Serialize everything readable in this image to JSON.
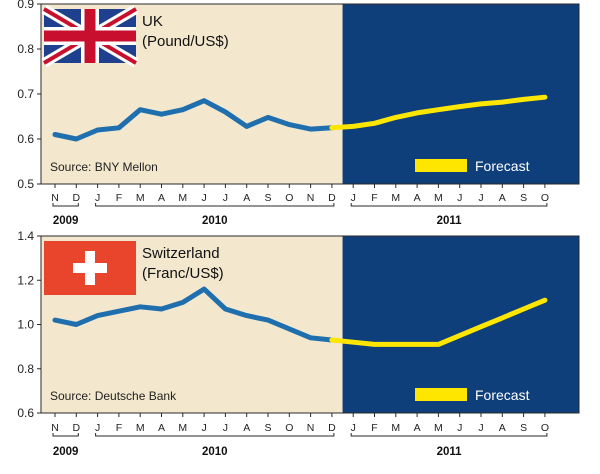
{
  "colors": {
    "history_bg": "#f3e8cd",
    "forecast_bg": "#0e3f7a",
    "history_line": "#1f6fae",
    "forecast_line": "#ffe600",
    "axis": "#2a2a2a",
    "grid": "#d6ccb4"
  },
  "months": [
    "N",
    "D",
    "J",
    "F",
    "M",
    "A",
    "M",
    "J",
    "J",
    "A",
    "S",
    "O",
    "N",
    "D",
    "J",
    "F",
    "M",
    "A",
    "M",
    "J",
    "J",
    "A",
    "S",
    "O"
  ],
  "year_labels": [
    "2009",
    "2010",
    "2011"
  ],
  "chart_data": [
    {
      "type": "line",
      "country": "UK",
      "unit": "(Pound/US$)",
      "flag": "uk-flag",
      "source": "Source: BNY Mellon",
      "legend_forecast": "Forecast",
      "ylim": [
        0.5,
        0.9
      ],
      "yticks": [
        "0.5",
        "0.6",
        "0.7",
        "0.8",
        "0.9"
      ],
      "series": [
        {
          "values": [
            0.61,
            0.6,
            0.62,
            0.625,
            0.665,
            0.655,
            0.665,
            0.685,
            0.66,
            0.628,
            0.648,
            0.632,
            0.622,
            0.625,
            null,
            null,
            null,
            null,
            null,
            null,
            null,
            null,
            null,
            null
          ]
        },
        {
          "name": "Forecast",
          "values": [
            null,
            null,
            null,
            null,
            null,
            null,
            null,
            null,
            null,
            null,
            null,
            null,
            null,
            0.625,
            0.628,
            0.635,
            0.648,
            0.658,
            0.665,
            0.672,
            0.678,
            0.682,
            0.688,
            0.693
          ]
        }
      ]
    },
    {
      "type": "line",
      "country": "Switzerland",
      "unit": "(Franc/US$)",
      "flag": "swiss-flag",
      "source": "Source: Deutsche Bank",
      "legend_forecast": "Forecast",
      "ylim": [
        0.6,
        1.4
      ],
      "yticks": [
        "0.6",
        "0.8",
        "1.0",
        "1.2",
        "1.4"
      ],
      "series": [
        {
          "values": [
            1.02,
            1.0,
            1.04,
            1.06,
            1.08,
            1.07,
            1.1,
            1.16,
            1.07,
            1.04,
            1.02,
            0.98,
            0.94,
            0.93,
            null,
            null,
            null,
            null,
            null,
            null,
            null,
            null,
            null,
            null
          ]
        },
        {
          "name": "Forecast",
          "values": [
            null,
            null,
            null,
            null,
            null,
            null,
            null,
            null,
            null,
            null,
            null,
            null,
            null,
            0.93,
            0.92,
            0.91,
            0.91,
            0.91,
            0.91,
            0.95,
            0.99,
            1.03,
            1.07,
            1.11
          ]
        }
      ]
    }
  ]
}
